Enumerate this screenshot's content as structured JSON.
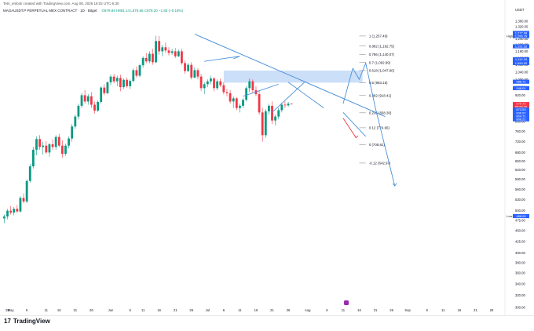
{
  "header": {
    "created_by": "Tetri_emboli created with TradingView.com, Aug 08, 2026 18:02 UTC-5:30",
    "symbol_line": "MAGAUSDT.P PERPETUAL MEX CONTRACT · 1D · Bitget",
    "quote_line": "O879.84 H881.14 L875.65 C878.20 −1.55 (−0.18%)"
  },
  "brand": {
    "logo_text": "17",
    "name": "TradingView"
  },
  "chart_data": {
    "type": "candlestick",
    "price_axis": {
      "unit": "USDT",
      "ticks": [
        1360,
        1320,
        1280,
        1240,
        1200,
        1160,
        1120,
        1080,
        1040,
        1000,
        960,
        920,
        880,
        840,
        800,
        760,
        720,
        680,
        650,
        620,
        590,
        560,
        530,
        500,
        475,
        450,
        425,
        400,
        380,
        360,
        340,
        320,
        300
      ],
      "tick_labels": [
        "1,360.00",
        "1,320.00",
        "1,280.00",
        "1,240.00",
        "1,200.00",
        "1,160.00",
        "1,120.00",
        "1,080.00",
        "1,040.00",
        "1,000.00",
        "960.00",
        "920.00",
        "880.00",
        "840.00",
        "800.00",
        "760.00",
        "720.00",
        "680.00",
        "650.00",
        "620.00",
        "590.00",
        "560.00",
        "530.00",
        "500.00",
        "475.00",
        "450.00",
        "425.00",
        "400.00",
        "380.00",
        "360.00",
        "340.00",
        "320.00",
        "300.00"
      ],
      "scale": "log",
      "range": [
        300,
        1400
      ]
    },
    "time_axis": {
      "ticks": [
        {
          "day": -1,
          "label": "28"
        },
        {
          "day": 0,
          "label": "May"
        },
        {
          "day": 5,
          "label": "6"
        },
        {
          "day": 11,
          "label": "11"
        },
        {
          "day": 15,
          "label": "16"
        },
        {
          "day": 20,
          "label": "21"
        },
        {
          "day": 25,
          "label": "26"
        },
        {
          "day": 31,
          "label": "Jun"
        },
        {
          "day": 37,
          "label": "6"
        },
        {
          "day": 41,
          "label": "11"
        },
        {
          "day": 46,
          "label": "16"
        },
        {
          "day": 51,
          "label": "21"
        },
        {
          "day": 56,
          "label": "26"
        },
        {
          "day": 61,
          "label": "Jul"
        },
        {
          "day": 66,
          "label": "6"
        },
        {
          "day": 71,
          "label": "11"
        },
        {
          "day": 76,
          "label": "16"
        },
        {
          "day": 81,
          "label": "21"
        },
        {
          "day": 86,
          "label": "26"
        },
        {
          "day": 92,
          "label": "Aug"
        },
        {
          "day": 98,
          "label": "6"
        },
        {
          "day": 103,
          "label": "11"
        },
        {
          "day": 108,
          "label": "16"
        },
        {
          "day": 113,
          "label": "21"
        },
        {
          "day": 118,
          "label": "26"
        },
        {
          "day": 123,
          "label": "Sep"
        },
        {
          "day": 129,
          "label": "6"
        },
        {
          "day": 134,
          "label": "11"
        },
        {
          "day": 139,
          "label": "16"
        },
        {
          "day": 144,
          "label": "21"
        },
        {
          "day": 149,
          "label": "26"
        }
      ]
    },
    "candles": [
      {
        "o": 480,
        "h": 490,
        "l": 468,
        "c": 485
      },
      {
        "o": 485,
        "h": 505,
        "l": 478,
        "c": 500
      },
      {
        "o": 500,
        "h": 512,
        "l": 490,
        "c": 495
      },
      {
        "o": 495,
        "h": 510,
        "l": 488,
        "c": 505
      },
      {
        "o": 505,
        "h": 515,
        "l": 495,
        "c": 498
      },
      {
        "o": 498,
        "h": 540,
        "l": 495,
        "c": 535
      },
      {
        "o": 535,
        "h": 548,
        "l": 520,
        "c": 525
      },
      {
        "o": 525,
        "h": 590,
        "l": 520,
        "c": 585
      },
      {
        "o": 585,
        "h": 640,
        "l": 580,
        "c": 632
      },
      {
        "o": 632,
        "h": 700,
        "l": 625,
        "c": 690
      },
      {
        "o": 690,
        "h": 740,
        "l": 670,
        "c": 730
      },
      {
        "o": 730,
        "h": 745,
        "l": 690,
        "c": 700
      },
      {
        "o": 700,
        "h": 720,
        "l": 672,
        "c": 705
      },
      {
        "o": 705,
        "h": 722,
        "l": 675,
        "c": 680
      },
      {
        "o": 680,
        "h": 715,
        "l": 665,
        "c": 710
      },
      {
        "o": 710,
        "h": 728,
        "l": 690,
        "c": 700
      },
      {
        "o": 700,
        "h": 745,
        "l": 690,
        "c": 738
      },
      {
        "o": 738,
        "h": 750,
        "l": 700,
        "c": 705
      },
      {
        "o": 705,
        "h": 725,
        "l": 662,
        "c": 675
      },
      {
        "o": 675,
        "h": 712,
        "l": 668,
        "c": 705
      },
      {
        "o": 705,
        "h": 740,
        "l": 695,
        "c": 732
      },
      {
        "o": 732,
        "h": 790,
        "l": 720,
        "c": 780
      },
      {
        "o": 780,
        "h": 830,
        "l": 770,
        "c": 822
      },
      {
        "o": 822,
        "h": 880,
        "l": 810,
        "c": 870
      },
      {
        "o": 870,
        "h": 930,
        "l": 860,
        "c": 920
      },
      {
        "o": 920,
        "h": 945,
        "l": 880,
        "c": 890
      },
      {
        "o": 890,
        "h": 925,
        "l": 875,
        "c": 915
      },
      {
        "o": 915,
        "h": 935,
        "l": 860,
        "c": 875
      },
      {
        "o": 875,
        "h": 890,
        "l": 835,
        "c": 848
      },
      {
        "o": 848,
        "h": 895,
        "l": 842,
        "c": 888
      },
      {
        "o": 888,
        "h": 965,
        "l": 880,
        "c": 958
      },
      {
        "o": 958,
        "h": 975,
        "l": 920,
        "c": 930
      },
      {
        "o": 930,
        "h": 990,
        "l": 925,
        "c": 985
      },
      {
        "o": 985,
        "h": 1025,
        "l": 970,
        "c": 1015
      },
      {
        "o": 1015,
        "h": 1030,
        "l": 980,
        "c": 990
      },
      {
        "o": 990,
        "h": 1020,
        "l": 965,
        "c": 1008
      },
      {
        "o": 1008,
        "h": 1025,
        "l": 940,
        "c": 960
      },
      {
        "o": 960,
        "h": 1005,
        "l": 950,
        "c": 998
      },
      {
        "o": 998,
        "h": 1010,
        "l": 955,
        "c": 965
      },
      {
        "o": 965,
        "h": 1000,
        "l": 950,
        "c": 992
      },
      {
        "o": 992,
        "h": 1060,
        "l": 985,
        "c": 1050
      },
      {
        "o": 1050,
        "h": 1070,
        "l": 1010,
        "c": 1020
      },
      {
        "o": 1020,
        "h": 1085,
        "l": 1012,
        "c": 1078
      },
      {
        "o": 1078,
        "h": 1130,
        "l": 1065,
        "c": 1120
      },
      {
        "o": 1120,
        "h": 1150,
        "l": 1090,
        "c": 1100
      },
      {
        "o": 1100,
        "h": 1160,
        "l": 1090,
        "c": 1145
      },
      {
        "o": 1145,
        "h": 1175,
        "l": 1080,
        "c": 1095
      },
      {
        "o": 1095,
        "h": 1260,
        "l": 1090,
        "c": 1225
      },
      {
        "o": 1225,
        "h": 1257,
        "l": 1140,
        "c": 1160
      },
      {
        "o": 1160,
        "h": 1200,
        "l": 1130,
        "c": 1185
      },
      {
        "o": 1185,
        "h": 1215,
        "l": 1150,
        "c": 1165
      },
      {
        "o": 1165,
        "h": 1185,
        "l": 1135,
        "c": 1150
      },
      {
        "o": 1150,
        "h": 1175,
        "l": 1138,
        "c": 1160
      },
      {
        "o": 1160,
        "h": 1180,
        "l": 1120,
        "c": 1130
      },
      {
        "o": 1130,
        "h": 1170,
        "l": 1125,
        "c": 1160
      },
      {
        "o": 1160,
        "h": 1175,
        "l": 1080,
        "c": 1090
      },
      {
        "o": 1090,
        "h": 1105,
        "l": 1030,
        "c": 1045
      },
      {
        "o": 1045,
        "h": 1090,
        "l": 1040,
        "c": 1080
      },
      {
        "o": 1080,
        "h": 1095,
        "l": 1000,
        "c": 1010
      },
      {
        "o": 1010,
        "h": 1065,
        "l": 1005,
        "c": 1050
      },
      {
        "o": 1050,
        "h": 1060,
        "l": 1000,
        "c": 1015
      },
      {
        "o": 1015,
        "h": 1030,
        "l": 940,
        "c": 955
      },
      {
        "o": 955,
        "h": 985,
        "l": 925,
        "c": 975
      },
      {
        "o": 975,
        "h": 1000,
        "l": 960,
        "c": 990
      },
      {
        "o": 990,
        "h": 1020,
        "l": 975,
        "c": 1005
      },
      {
        "o": 1005,
        "h": 1012,
        "l": 940,
        "c": 955
      },
      {
        "o": 955,
        "h": 1000,
        "l": 945,
        "c": 990
      },
      {
        "o": 990,
        "h": 1005,
        "l": 960,
        "c": 970
      },
      {
        "o": 970,
        "h": 985,
        "l": 925,
        "c": 935
      },
      {
        "o": 935,
        "h": 950,
        "l": 915,
        "c": 930
      },
      {
        "o": 930,
        "h": 945,
        "l": 880,
        "c": 890
      },
      {
        "o": 890,
        "h": 915,
        "l": 860,
        "c": 905
      },
      {
        "o": 905,
        "h": 910,
        "l": 850,
        "c": 860
      },
      {
        "o": 860,
        "h": 880,
        "l": 840,
        "c": 870
      },
      {
        "o": 870,
        "h": 905,
        "l": 860,
        "c": 898
      },
      {
        "o": 898,
        "h": 965,
        "l": 890,
        "c": 955
      },
      {
        "o": 955,
        "h": 1005,
        "l": 935,
        "c": 990
      },
      {
        "o": 990,
        "h": 1000,
        "l": 930,
        "c": 945
      },
      {
        "o": 945,
        "h": 965,
        "l": 915,
        "c": 925
      },
      {
        "o": 925,
        "h": 945,
        "l": 830,
        "c": 840
      },
      {
        "o": 840,
        "h": 860,
        "l": 720,
        "c": 745
      },
      {
        "o": 745,
        "h": 855,
        "l": 735,
        "c": 845
      },
      {
        "o": 845,
        "h": 880,
        "l": 830,
        "c": 870
      },
      {
        "o": 870,
        "h": 890,
        "l": 790,
        "c": 805
      },
      {
        "o": 805,
        "h": 830,
        "l": 785,
        "c": 822
      },
      {
        "o": 822,
        "h": 860,
        "l": 810,
        "c": 850
      },
      {
        "o": 850,
        "h": 885,
        "l": 840,
        "c": 875
      },
      {
        "o": 875,
        "h": 890,
        "l": 860,
        "c": 872
      },
      {
        "o": 872,
        "h": 888,
        "l": 865,
        "c": 880
      },
      {
        "o": 879.84,
        "h": 881.14,
        "l": 875.65,
        "c": 878.2
      }
    ],
    "first_candle_day": -2,
    "fibonacci_levels": [
      {
        "ratio": "1",
        "price": 1257.49,
        "label": "1 (1,257.49)"
      },
      {
        "ratio": "0.882",
        "price": 1192.75,
        "label": "0.882 (1,192.75)"
      },
      {
        "ratio": "0.786",
        "price": 1140.07,
        "label": "0.786 (1,140.07)"
      },
      {
        "ratio": "0.7",
        "price": 1092.89,
        "label": "0.7 (1,092.89)"
      },
      {
        "ratio": "0.618",
        "price": 1047.9,
        "label": "0.618 (1,047.90)"
      },
      {
        "ratio": "0.5",
        "price": 983.15,
        "label": "0.5 (983.15)"
      },
      {
        "ratio": "0.382",
        "price": 918.41,
        "label": "0.382 (918.41)"
      },
      {
        "ratio": "0.236",
        "price": 838.3,
        "label": "0.236 (838.30)"
      },
      {
        "ratio": "0.12",
        "price": 774.66,
        "label": "0.12 (774.66)"
      },
      {
        "ratio": "0",
        "price": 708.81,
        "label": "0 (708.81)"
      },
      {
        "ratio": "-0.12",
        "price": 642.97,
        "label": "-0.12 (642.97)"
      }
    ],
    "price_labels_right": [
      {
        "text": "1,277.98",
        "price": 1278,
        "color": "#2962ff"
      },
      {
        "text": "1,256.79",
        "price": 1257,
        "color": "#2962ff"
      },
      {
        "text": "1,191.32",
        "price": 1191,
        "color": "#2962ff"
      },
      {
        "text": "1,112.18",
        "price": 1112,
        "color": "#2962ff"
      },
      {
        "text": "1,090.00",
        "price": 1090,
        "color": "#2962ff"
      },
      {
        "text": "988.71",
        "price": 988,
        "color": "#2962ff"
      },
      {
        "text": "948.01",
        "price": 955,
        "color": "#2962ff"
      },
      {
        "text": "878.20",
        "price": 878,
        "color": "#f23645"
      },
      {
        "text": "05:58:20",
        "price": 866,
        "color": "#f23645"
      },
      {
        "text": "873.53",
        "price": 853,
        "color": "#2962ff"
      },
      {
        "text": "836.97",
        "price": 838,
        "color": "#2962ff"
      },
      {
        "text": "804.71",
        "price": 824,
        "color": "#2962ff"
      },
      {
        "text": "808.21",
        "price": 810,
        "color": "#2962ff"
      },
      {
        "text": "488.00",
        "price": 486,
        "color": "#2962ff"
      }
    ],
    "high_marker": {
      "label": "High",
      "price": 1257
    },
    "low_marker": {
      "label": "Low",
      "price": 486
    },
    "colors": {
      "up": "#089981",
      "down": "#f23645",
      "drawing": "#4a90d9",
      "fib": "#787b86",
      "zone": "#bbd4f6"
    }
  }
}
